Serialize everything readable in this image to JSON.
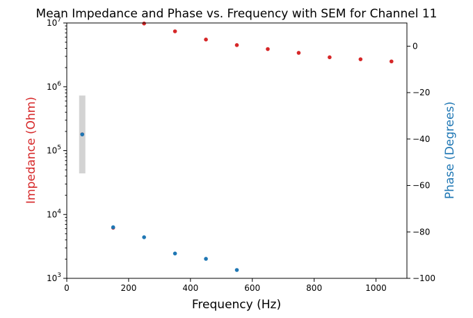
{
  "chart_data": {
    "type": "scatter",
    "title": "Mean Impedance and Phase vs. Frequency with SEM for Channel 11",
    "xlabel": "Frequency (Hz)",
    "ylabel_left": "Impedance (Ohm)",
    "ylabel_right": "Phase (Degrees)",
    "xlim": [
      0,
      1100
    ],
    "ylim_left": [
      1000,
      10000000
    ],
    "ylim_right": [
      -100,
      10
    ],
    "left_scale": "log",
    "x_ticks": [
      0,
      200,
      400,
      600,
      800,
      1000
    ],
    "left_ticks": [
      {
        "value": 1000,
        "base": "10",
        "exp": "3"
      },
      {
        "value": 10000,
        "base": "10",
        "exp": "4"
      },
      {
        "value": 100000,
        "base": "10",
        "exp": "5"
      },
      {
        "value": 1000000,
        "base": "10",
        "exp": "6"
      },
      {
        "value": 10000000,
        "base": "10",
        "exp": "7"
      }
    ],
    "right_ticks": [
      0,
      -20,
      -40,
      -60,
      -80,
      -100
    ],
    "grid": false,
    "colors": {
      "impedance": "#d62728",
      "phase": "#1f77b4",
      "sem": "#d3d3d3"
    },
    "series": [
      {
        "axis": "left",
        "x": [
          50,
          150,
          250,
          350,
          450,
          550,
          650,
          750,
          850,
          950,
          1050
        ],
        "values": [
          180000,
          6200,
          9800000,
          7400000,
          5500000,
          4500000,
          3900000,
          3400000,
          2900000,
          2700000,
          2500000
        ],
        "sem_low": [
          44000,
          null,
          null,
          null,
          null,
          null,
          null,
          null,
          null,
          null,
          null
        ],
        "sem_high": [
          730000,
          null,
          null,
          null,
          null,
          null,
          null,
          null,
          null,
          null,
          null
        ]
      },
      {
        "axis": "right",
        "x": [
          50,
          150,
          250,
          350,
          450,
          550
        ],
        "values": [
          -38,
          -78,
          -82.3,
          -89.3,
          -91.6,
          -96.4
        ]
      }
    ]
  }
}
